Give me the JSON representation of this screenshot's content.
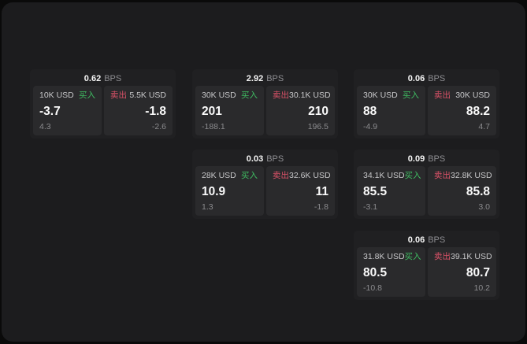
{
  "labels": {
    "bps_unit": "BPS",
    "buy": "买入",
    "sell": "卖出"
  },
  "colors": {
    "outer_bg": "#0a0a0a",
    "panel_bg": "#1c1c1e",
    "card_bg": "#202022",
    "tile_bg": "#2a2a2c",
    "text_primary": "#fafafa",
    "text_secondary": "#c6c6c8",
    "text_muted": "#8b8b8e",
    "buy_green": "#3fbd62",
    "sell_red": "#dc5268"
  },
  "cards": [
    {
      "bps": "0.62",
      "buy": {
        "amount": "10K USD",
        "price": "-3.7",
        "delta": "4.3"
      },
      "sell": {
        "amount": "5.5K USD",
        "price": "-1.8",
        "delta": "-2.6"
      }
    },
    {
      "bps": "2.92",
      "buy": {
        "amount": "30K USD",
        "price": "201",
        "delta": "-188.1"
      },
      "sell": {
        "amount": "30.1K USD",
        "price": "210",
        "delta": "196.5"
      }
    },
    {
      "bps": "0.06",
      "buy": {
        "amount": "30K USD",
        "price": "88",
        "delta": "-4.9"
      },
      "sell": {
        "amount": "30K USD",
        "price": "88.2",
        "delta": "4.7"
      }
    },
    {
      "bps": "0.03",
      "buy": {
        "amount": "28K USD",
        "price": "10.9",
        "delta": "1.3"
      },
      "sell": {
        "amount": "32.6K USD",
        "price": "11",
        "delta": "-1.8"
      }
    },
    {
      "bps": "0.09",
      "buy": {
        "amount": "34.1K USD",
        "price": "85.5",
        "delta": "-3.1"
      },
      "sell": {
        "amount": "32.8K USD",
        "price": "85.8",
        "delta": "3.0"
      }
    },
    {
      "bps": "0.06",
      "buy": {
        "amount": "31.8K USD",
        "price": "80.5",
        "delta": "-10.8"
      },
      "sell": {
        "amount": "39.1K USD",
        "price": "80.7",
        "delta": "10.2"
      }
    }
  ]
}
